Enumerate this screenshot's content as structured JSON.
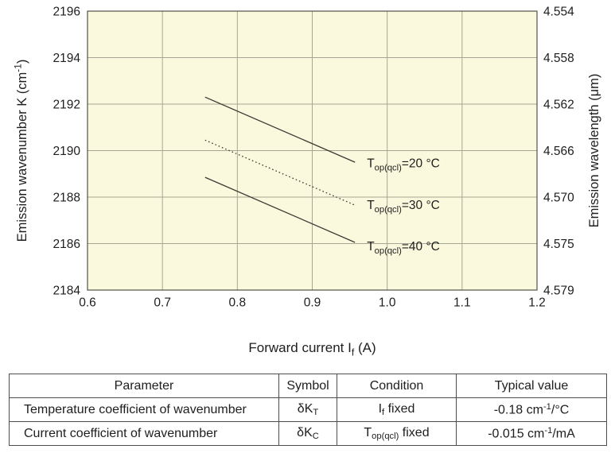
{
  "chart_data": {
    "type": "line",
    "title": "",
    "xlabel": "Forward current If (A)",
    "xlabel_rich": [
      {
        "t": "Forward current I"
      },
      {
        "t": "f",
        "v": "sub"
      },
      {
        "t": " (A)"
      }
    ],
    "ylabel_left": "Emission wavenumber K (cm-1)",
    "ylabel_left_rich": [
      {
        "t": "Emission wavenumber K (cm"
      },
      {
        "t": "-1",
        "v": "sup"
      },
      {
        "t": ")"
      }
    ],
    "ylabel_right": "Emission wavelength (μm)",
    "xlim": [
      0.6,
      1.2
    ],
    "ylim_left": [
      2184,
      2196
    ],
    "grid": true,
    "legend_position": "inline-labels",
    "x_ticks": [
      "0.6",
      "0.7",
      "0.8",
      "0.9",
      "1.0",
      "1.1",
      "1.2"
    ],
    "y_ticks_left": [
      "2196",
      "2194",
      "2192",
      "2190",
      "2188",
      "2186",
      "2184"
    ],
    "y_ticks_right": [
      "4.554",
      "4.558",
      "4.562",
      "4.566",
      "4.570",
      "4.575",
      "4.579"
    ],
    "colors": {
      "plot_bg": "#fbf9dd",
      "grid": "#a6a695",
      "border": "#55524a",
      "line": "#3e3a33",
      "text": "#1e1e1e"
    },
    "series": [
      {
        "name": "Top(qcl)=20 °C",
        "label_rich": [
          {
            "t": "T"
          },
          {
            "t": "op(qcl)",
            "v": "sub"
          },
          {
            "t": "=20 °C"
          }
        ],
        "style": "solid",
        "points": [
          [
            0.757,
            2192.3
          ],
          [
            0.957,
            2189.5
          ]
        ],
        "label_at": [
          0.973,
          2189.47
        ]
      },
      {
        "name": "Top(qcl)=30 °C",
        "label_rich": [
          {
            "t": "T"
          },
          {
            "t": "op(qcl)",
            "v": "sub"
          },
          {
            "t": "=30 °C"
          }
        ],
        "style": "dotted",
        "points": [
          [
            0.757,
            2190.45
          ],
          [
            0.957,
            2187.65
          ]
        ],
        "label_at": [
          0.973,
          2187.68
        ]
      },
      {
        "name": "Top(qcl)=40 °C",
        "label_rich": [
          {
            "t": "T"
          },
          {
            "t": "op(qcl)",
            "v": "sub"
          },
          {
            "t": "=40 °C"
          }
        ],
        "style": "solid",
        "points": [
          [
            0.757,
            2188.85
          ],
          [
            0.957,
            2186.05
          ]
        ],
        "label_at": [
          0.973,
          2185.9
        ]
      }
    ]
  },
  "table": {
    "headers": [
      "Parameter",
      "Symbol",
      "Condition",
      "Typical value"
    ],
    "rows": [
      {
        "parameter": "Temperature coefficient of wavenumber",
        "symbol": "δKT",
        "symbol_rich": [
          {
            "t": "δK"
          },
          {
            "t": "T",
            "v": "sub"
          }
        ],
        "condition": "If fixed",
        "condition_rich": [
          {
            "t": "I"
          },
          {
            "t": "f",
            "v": "sub"
          },
          {
            "t": " fixed"
          }
        ],
        "typical_value": "-0.18 cm-1/°C",
        "value_rich": [
          {
            "t": "-0.18 cm"
          },
          {
            "t": "-1",
            "v": "sup"
          },
          {
            "t": "/°C"
          }
        ]
      },
      {
        "parameter": "Current coefficient of wavenumber",
        "symbol": "δKC",
        "symbol_rich": [
          {
            "t": "δK"
          },
          {
            "t": "C",
            "v": "sub"
          }
        ],
        "condition": "Top(qcl) fixed",
        "condition_rich": [
          {
            "t": "T"
          },
          {
            "t": "op(qcl)",
            "v": "sub"
          },
          {
            "t": " fixed"
          }
        ],
        "typical_value": "-0.015 cm-1/mA",
        "value_rich": [
          {
            "t": "-0.015 cm"
          },
          {
            "t": "-1",
            "v": "sup"
          },
          {
            "t": "/mA"
          }
        ]
      }
    ]
  }
}
